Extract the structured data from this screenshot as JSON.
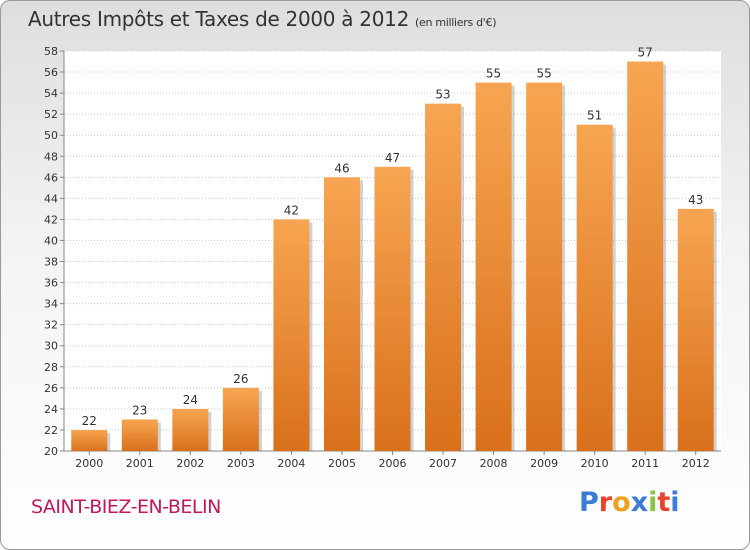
{
  "header": {
    "title": "Autres Impôts et Taxes de 2000 à 2012",
    "subtitle": "(en milliers d'€)"
  },
  "footer": {
    "commune": "SAINT-BIEZ-EN-BELIN",
    "logo_text": "Proxiti"
  },
  "colors": {
    "bar_top": "#f7a552",
    "bar_bottom": "#d9701b",
    "grid": "#cccccc",
    "commune": "#c2185b",
    "logo": [
      "#3a7bd5",
      "#e8442c",
      "#f0a020",
      "#3a7bd5",
      "#8bc34a",
      "#e8442c",
      "#3a7bd5"
    ]
  },
  "chart_data": {
    "type": "bar",
    "title": "Autres Impôts et Taxes de 2000 à 2012",
    "subtitle": "(en milliers d'€)",
    "categories": [
      "2000",
      "2001",
      "2002",
      "2003",
      "2004",
      "2005",
      "2006",
      "2007",
      "2008",
      "2009",
      "2010",
      "2011",
      "2012"
    ],
    "values": [
      22,
      23,
      24,
      26,
      42,
      46,
      47,
      53,
      55,
      55,
      51,
      57,
      43
    ],
    "ylim": [
      20,
      58
    ],
    "yticks": [
      20,
      22,
      24,
      26,
      28,
      30,
      32,
      34,
      36,
      38,
      40,
      42,
      44,
      46,
      48,
      50,
      52,
      54,
      56,
      58
    ],
    "grid": true,
    "legend": "none"
  }
}
